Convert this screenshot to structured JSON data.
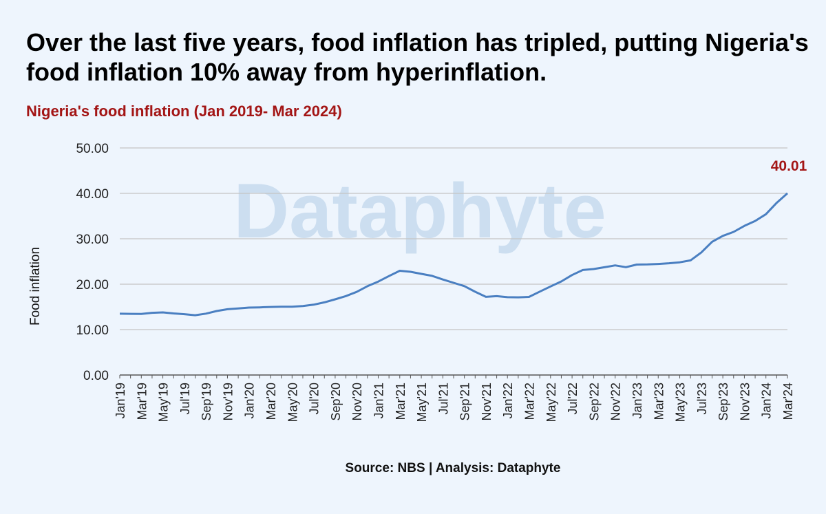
{
  "headline": "Over the last five years, food inflation has tripled, putting Nigeria's food inflation 10% away from hyperinflation.",
  "watermark": "Dataphyte",
  "source": "Source: NBS | Analysis: Dataphyte",
  "chart_data": {
    "type": "line",
    "title": "Nigeria's food inflation (Jan 2019- Mar 2024)",
    "xlabel": "",
    "ylabel": "Food inflation",
    "ylim": [
      0,
      50
    ],
    "yticks": [
      "0.00",
      "10.00",
      "20.00",
      "30.00",
      "40.00",
      "50.00"
    ],
    "grid": true,
    "line_color": "#4a7fc1",
    "x": [
      "Jan'19",
      "Feb'19",
      "Mar'19",
      "Apr'19",
      "May'19",
      "Jun'19",
      "Jul'19",
      "Aug'19",
      "Sep'19",
      "Oct'19",
      "Nov'19",
      "Dec'19",
      "Jan'20",
      "Feb'20",
      "Mar'20",
      "Apr'20",
      "May'20",
      "Jun'20",
      "Jul'20",
      "Aug'20",
      "Sep'20",
      "Oct'20",
      "Nov'20",
      "Dec'20",
      "Jan'21",
      "Feb'21",
      "Mar'21",
      "Apr'21",
      "May'21",
      "Jun'21",
      "Jul'21",
      "Aug'21",
      "Sep'21",
      "Oct'21",
      "Nov'21",
      "Dec'21",
      "Jan'22",
      "Feb'22",
      "Mar'22",
      "Apr'22",
      "May'22",
      "Jun'22",
      "Jul'22",
      "Aug'22",
      "Sep'22",
      "Oct'22",
      "Nov'22",
      "Dec'22",
      "Jan'23",
      "Feb'23",
      "Mar'23",
      "Apr'23",
      "May'23",
      "Jun'23",
      "Jul'23",
      "Aug'23",
      "Sep'23",
      "Oct'23",
      "Nov'23",
      "Dec'23",
      "Jan'24",
      "Feb'24",
      "Mar'24"
    ],
    "xtick_labels": [
      "Jan'19",
      "Mar'19",
      "May'19",
      "Jul'19",
      "Sep'19",
      "Nov'19",
      "Jan'20",
      "Mar'20",
      "May'20",
      "Jul'20",
      "Sep'20",
      "Nov'20",
      "Jan'21",
      "Mar'21",
      "May'21",
      "Jul'21",
      "Sep'21",
      "Nov'21",
      "Jan'22",
      "Mar'22",
      "May'22",
      "Jul'22",
      "Sep'22",
      "Nov'22",
      "Jan'23",
      "Mar'23",
      "May'23",
      "Jul'23",
      "Sep'23",
      "Nov'23",
      "Jan'24",
      "Mar'24"
    ],
    "series": [
      {
        "values": [
          13.5,
          13.47,
          13.45,
          13.7,
          13.79,
          13.56,
          13.39,
          13.17,
          13.51,
          14.09,
          14.48,
          14.67,
          14.85,
          14.9,
          14.98,
          15.03,
          15.04,
          15.18,
          15.48,
          16.0,
          16.66,
          17.38,
          18.3,
          19.56,
          20.57,
          21.79,
          22.95,
          22.72,
          22.28,
          21.83,
          21.03,
          20.3,
          19.57,
          18.34,
          17.21,
          17.37,
          17.13,
          17.11,
          17.2,
          18.37,
          19.5,
          20.6,
          22.02,
          23.12,
          23.34,
          23.72,
          24.13,
          23.75,
          24.32,
          24.35,
          24.45,
          24.61,
          24.82,
          25.25,
          26.98,
          29.34,
          30.64,
          31.52,
          32.84,
          33.93,
          35.41,
          37.92,
          40.01
        ]
      }
    ],
    "annotations": [
      {
        "label": "40.01",
        "at": "Mar'24"
      }
    ]
  }
}
